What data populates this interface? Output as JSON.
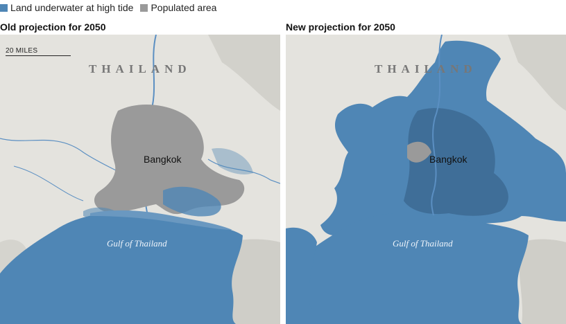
{
  "legend": {
    "items": [
      {
        "label": "Land underwater at high tide",
        "color": "#4f86b5"
      },
      {
        "label": "Populated area",
        "color": "#9a9a9a"
      }
    ]
  },
  "panels": [
    {
      "title": "Old projection for 2050",
      "scale_label": "20 MILES",
      "country_label": "THAILAND",
      "city_label": "Bangkok",
      "sea_label": "Gulf of Thailand"
    },
    {
      "title": "New projection for 2050",
      "country_label": "THAILAND",
      "city_label": "Bangkok",
      "sea_label": "Gulf of Thailand"
    }
  ],
  "colors": {
    "land": "#e4e3de",
    "water": "#4f86b5",
    "flood": "#4f86b5",
    "populated": "#9a9a9a",
    "river": "#5b8fc2",
    "terrain": "#c9c8c2"
  }
}
